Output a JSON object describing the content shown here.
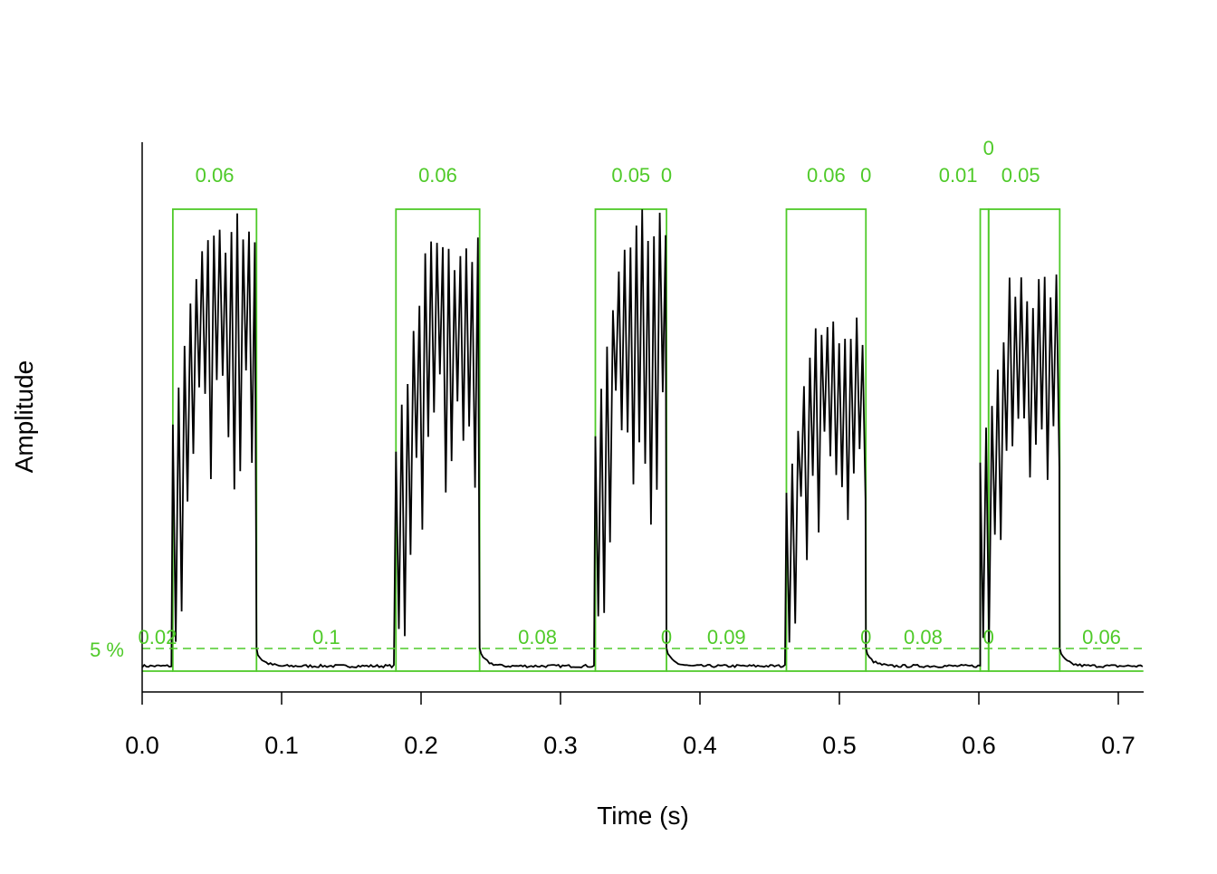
{
  "chart_data": {
    "type": "line",
    "title": "",
    "xlabel": "Time (s)",
    "ylabel": "Amplitude",
    "xlim": [
      0,
      0.718
    ],
    "ylim": [
      0,
      1
    ],
    "x_ticks": [
      "0.0",
      "0.1",
      "0.2",
      "0.3",
      "0.4",
      "0.5",
      "0.6",
      "0.7"
    ],
    "x_tick_values": [
      0,
      0.1,
      0.2,
      0.3,
      0.4,
      0.5,
      0.6,
      0.7
    ],
    "threshold": {
      "value": 0.05,
      "label": "5 %"
    },
    "signal_color": "#000000",
    "timer_color": "#4fca29",
    "signal_segments": [
      {
        "start": 0.022,
        "end": 0.082,
        "label": "0.06",
        "peak": 1.0
      },
      {
        "start": 0.182,
        "end": 0.242,
        "label": "0.06",
        "peak": 0.94
      },
      {
        "start": 0.325,
        "end": 0.376,
        "label": "0.05",
        "peak": 1.0
      },
      {
        "start": 0.376,
        "end": 0.376,
        "label": "0",
        "peak": 0
      },
      {
        "start": 0.462,
        "end": 0.519,
        "label": "0.06",
        "peak": 0.78
      },
      {
        "start": 0.519,
        "end": 0.519,
        "label": "0",
        "peak": 0
      },
      {
        "start": 0.601,
        "end": 0.607,
        "label": "0.01",
        "peak": 0.6
      },
      {
        "start": 0.607,
        "end": 0.607,
        "label": "0",
        "peak": 0
      },
      {
        "start": 0.607,
        "end": 0.658,
        "label": "0.05",
        "peak": 0.87
      }
    ],
    "pause_segments": [
      {
        "start": 0.0,
        "end": 0.022,
        "label": "0.02"
      },
      {
        "start": 0.082,
        "end": 0.182,
        "label": "0.1"
      },
      {
        "start": 0.242,
        "end": 0.325,
        "label": "0.08"
      },
      {
        "start": 0.376,
        "end": 0.376,
        "label": "0"
      },
      {
        "start": 0.376,
        "end": 0.462,
        "label": "0.09"
      },
      {
        "start": 0.519,
        "end": 0.519,
        "label": "0"
      },
      {
        "start": 0.519,
        "end": 0.601,
        "label": "0.08"
      },
      {
        "start": 0.607,
        "end": 0.607,
        "label": "0"
      },
      {
        "start": 0.658,
        "end": 0.718,
        "label": "0.06"
      }
    ]
  }
}
